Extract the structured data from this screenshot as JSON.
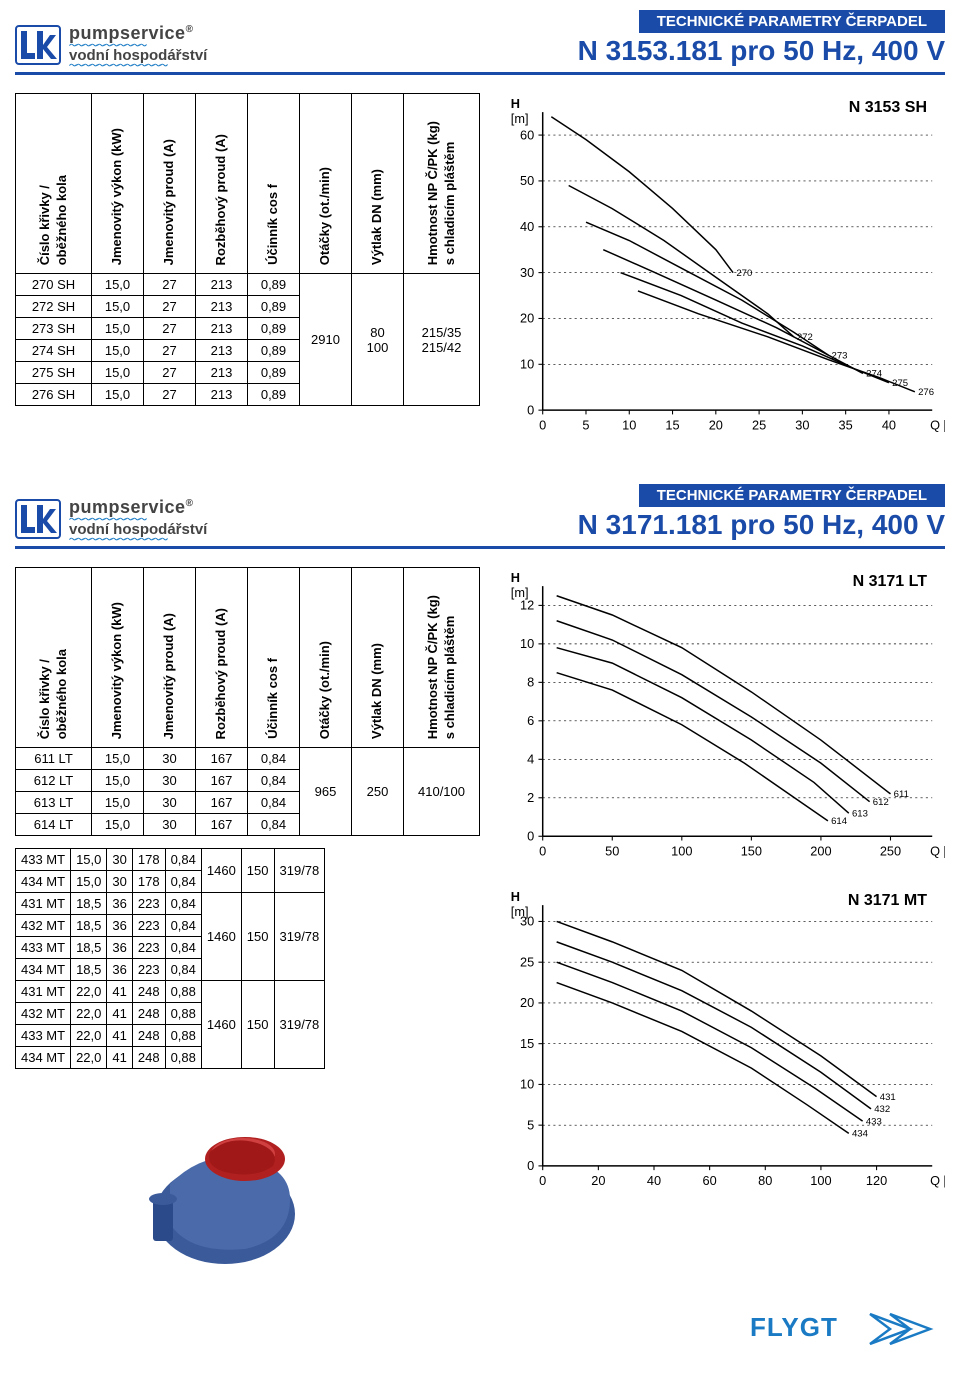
{
  "brand": {
    "name": "pumpservice",
    "tagline": "vodní hospodářství",
    "color_primary": "#1a4ba8",
    "color_accent": "#1a7bc4"
  },
  "section1": {
    "header": {
      "sub": "TECHNICKÉ PARAMETRY ČERPADEL",
      "main": "N 3153.181 pro 50 Hz, 400 V"
    },
    "columns": [
      "Číslo křivky /\noběžného kola",
      "Jmenovitý výkon (kW)",
      "Jmenovitý proud (A)",
      "Rozběhový proud (A)",
      "Účinník cos f",
      "Otáčky (ot./min)",
      "Výtlak DN (mm)",
      "Hmotnost NP Č/PK (kg)\ns chladicím pláštěm"
    ],
    "rows": [
      [
        "270 SH",
        "15,0",
        "27",
        "213",
        "0,89"
      ],
      [
        "272 SH",
        "15,0",
        "27",
        "213",
        "0,89"
      ],
      [
        "273 SH",
        "15,0",
        "27",
        "213",
        "0,89"
      ],
      [
        "274 SH",
        "15,0",
        "27",
        "213",
        "0,89"
      ],
      [
        "275 SH",
        "15,0",
        "27",
        "213",
        "0,89"
      ],
      [
        "276 SH",
        "15,0",
        "27",
        "213",
        "0,89"
      ]
    ],
    "merged": {
      "otacky": "2910",
      "vytlak": "80\n100",
      "hmotnost": "215/35\n215/42"
    },
    "chart": {
      "title": "N 3153 SH",
      "xlim": [
        0,
        45
      ],
      "ylim": [
        0,
        65
      ],
      "xticks": [
        0,
        5,
        10,
        15,
        20,
        25,
        30,
        35,
        40
      ],
      "yticks": [
        0,
        10,
        20,
        30,
        40,
        50,
        60
      ],
      "xlabel": "Q [l/s]",
      "ylabel": "H\n[m]",
      "curves": [
        {
          "label": "270",
          "pts": [
            [
              1,
              64
            ],
            [
              5,
              59
            ],
            [
              10,
              52
            ],
            [
              15,
              44
            ],
            [
              20,
              35
            ],
            [
              22,
              30
            ]
          ]
        },
        {
          "label": "272",
          "pts": [
            [
              3,
              49
            ],
            [
              8,
              44
            ],
            [
              14,
              37
            ],
            [
              20,
              29
            ],
            [
              26,
              21
            ],
            [
              29,
              16
            ]
          ]
        },
        {
          "label": "273",
          "pts": [
            [
              5,
              41
            ],
            [
              10,
              37
            ],
            [
              16,
              31
            ],
            [
              23,
              24
            ],
            [
              29,
              17
            ],
            [
              33,
              12
            ]
          ]
        },
        {
          "label": "274",
          "pts": [
            [
              7,
              35
            ],
            [
              13,
              30
            ],
            [
              20,
              24
            ],
            [
              27,
              18
            ],
            [
              33,
              12
            ],
            [
              37,
              8
            ]
          ]
        },
        {
          "label": "275",
          "pts": [
            [
              9,
              30
            ],
            [
              16,
              25
            ],
            [
              23,
              19
            ],
            [
              30,
              14
            ],
            [
              36,
              9
            ],
            [
              40,
              6
            ]
          ]
        },
        {
          "label": "276",
          "pts": [
            [
              11,
              26
            ],
            [
              18,
              21
            ],
            [
              26,
              16
            ],
            [
              33,
              11
            ],
            [
              39,
              7
            ],
            [
              43,
              4
            ]
          ]
        }
      ],
      "background_color": "#ffffff",
      "grid_color": "#000000",
      "line_color": "#000000",
      "line_width": 1.4
    }
  },
  "section2": {
    "header": {
      "sub": "TECHNICKÉ PARAMETRY ČERPADEL",
      "main": "N 3171.181 pro 50 Hz, 400 V"
    },
    "columns": [
      "Číslo křivky /\noběžného kola",
      "Jmenovitý výkon (kW)",
      "Jmenovitý proud (A)",
      "Rozběhový proud (A)",
      "Účinník cos f",
      "Otáčky (ot./min)",
      "Výtlak DN (mm)",
      "Hmotnost NP Č/PK (kg)\ns chladicím pláštěm"
    ],
    "lt_rows": [
      [
        "611 LT",
        "15,0",
        "30",
        "167",
        "0,84"
      ],
      [
        "612 LT",
        "15,0",
        "30",
        "167",
        "0,84"
      ],
      [
        "613 LT",
        "15,0",
        "30",
        "167",
        "0,84"
      ],
      [
        "614 LT",
        "15,0",
        "30",
        "167",
        "0,84"
      ]
    ],
    "lt_merged": {
      "otacky": "965",
      "vytlak": "250",
      "hmotnost": "410/100"
    },
    "mt_groups": [
      {
        "rows": [
          [
            "433 MT",
            "15,0",
            "30",
            "178",
            "0,84"
          ],
          [
            "434 MT",
            "15,0",
            "30",
            "178",
            "0,84"
          ]
        ],
        "merged": {
          "otacky": "1460",
          "vytlak": "150",
          "hmotnost": "319/78"
        }
      },
      {
        "rows": [
          [
            "431 MT",
            "18,5",
            "36",
            "223",
            "0,84"
          ],
          [
            "432 MT",
            "18,5",
            "36",
            "223",
            "0,84"
          ],
          [
            "433 MT",
            "18,5",
            "36",
            "223",
            "0,84"
          ],
          [
            "434 MT",
            "18,5",
            "36",
            "223",
            "0,84"
          ]
        ],
        "merged": {
          "otacky": "1460",
          "vytlak": "150",
          "hmotnost": "319/78"
        }
      },
      {
        "rows": [
          [
            "431 MT",
            "22,0",
            "41",
            "248",
            "0,88"
          ],
          [
            "432 MT",
            "22,0",
            "41",
            "248",
            "0,88"
          ],
          [
            "433 MT",
            "22,0",
            "41",
            "248",
            "0,88"
          ],
          [
            "434 MT",
            "22,0",
            "41",
            "248",
            "0,88"
          ]
        ],
        "merged": {
          "otacky": "1460",
          "vytlak": "150",
          "hmotnost": "319/78"
        }
      }
    ],
    "chart_lt": {
      "title": "N 3171 LT",
      "xlim": [
        0,
        280
      ],
      "ylim": [
        0,
        13
      ],
      "xticks": [
        0,
        50,
        100,
        150,
        200,
        250
      ],
      "yticks": [
        0,
        2,
        4,
        6,
        8,
        10,
        12
      ],
      "xlabel": "Q [l/s]",
      "ylabel": "H\n[m]",
      "curves": [
        {
          "label": "611",
          "pts": [
            [
              10,
              12.5
            ],
            [
              50,
              11.5
            ],
            [
              100,
              9.8
            ],
            [
              150,
              7.5
            ],
            [
              200,
              5.0
            ],
            [
              250,
              2.2
            ]
          ]
        },
        {
          "label": "612",
          "pts": [
            [
              10,
              11.2
            ],
            [
              50,
              10.2
            ],
            [
              100,
              8.4
            ],
            [
              150,
              6.2
            ],
            [
              200,
              3.8
            ],
            [
              235,
              1.8
            ]
          ]
        },
        {
          "label": "613",
          "pts": [
            [
              10,
              9.8
            ],
            [
              50,
              9.0
            ],
            [
              100,
              7.2
            ],
            [
              150,
              5.0
            ],
            [
              195,
              2.8
            ],
            [
              220,
              1.2
            ]
          ]
        },
        {
          "label": "614",
          "pts": [
            [
              10,
              8.5
            ],
            [
              50,
              7.6
            ],
            [
              100,
              5.8
            ],
            [
              145,
              3.8
            ],
            [
              185,
              1.8
            ],
            [
              205,
              0.8
            ]
          ]
        }
      ],
      "background_color": "#ffffff",
      "grid_color": "#000000",
      "line_color": "#000000",
      "line_width": 1.4
    },
    "chart_mt": {
      "title": "N 3171 MT",
      "xlim": [
        0,
        140
      ],
      "ylim": [
        0,
        32
      ],
      "xticks": [
        0,
        20,
        40,
        60,
        80,
        100,
        120
      ],
      "yticks": [
        0,
        5,
        10,
        15,
        20,
        25,
        30
      ],
      "xlabel": "Q [l/s]",
      "ylabel": "H\n[m]",
      "curves": [
        {
          "label": "431",
          "pts": [
            [
              5,
              30
            ],
            [
              25,
              27.5
            ],
            [
              50,
              24
            ],
            [
              75,
              19
            ],
            [
              100,
              13.5
            ],
            [
              120,
              8.5
            ]
          ]
        },
        {
          "label": "432",
          "pts": [
            [
              5,
              27.5
            ],
            [
              25,
              25
            ],
            [
              50,
              21.5
            ],
            [
              75,
              17
            ],
            [
              100,
              11.5
            ],
            [
              118,
              7
            ]
          ]
        },
        {
          "label": "433",
          "pts": [
            [
              5,
              25
            ],
            [
              25,
              22.5
            ],
            [
              50,
              19
            ],
            [
              75,
              14.5
            ],
            [
              98,
              9.5
            ],
            [
              115,
              5.5
            ]
          ]
        },
        {
          "label": "434",
          "pts": [
            [
              5,
              22.5
            ],
            [
              25,
              20
            ],
            [
              50,
              16.5
            ],
            [
              75,
              12
            ],
            [
              95,
              7.5
            ],
            [
              110,
              4
            ]
          ]
        }
      ],
      "background_color": "#ffffff",
      "grid_color": "#000000",
      "line_color": "#000000",
      "line_width": 1.4
    }
  },
  "footer": {
    "brand": "FLYGT",
    "color": "#1a7bc4"
  }
}
